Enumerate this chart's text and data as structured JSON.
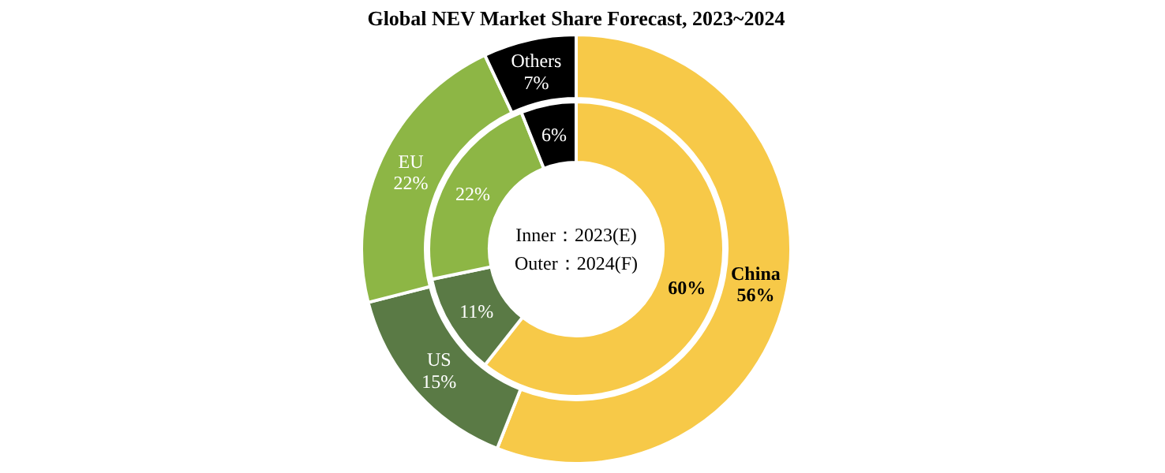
{
  "chart_data": {
    "type": "donut",
    "title": "Global NEV Market Share Forecast, 2023~2024",
    "categories": [
      "China",
      "US",
      "EU",
      "Others"
    ],
    "colors": [
      "#f7c948",
      "#5a7a45",
      "#8db645",
      "#000000"
    ],
    "series": [
      {
        "values": [
          60,
          11,
          22,
          6
        ],
        "value_labels": [
          "60%",
          "11%",
          "22%",
          "6%"
        ]
      },
      {
        "values": [
          56,
          15,
          22,
          7
        ],
        "value_labels": [
          "56%",
          "15%",
          "22%",
          "7%"
        ]
      }
    ],
    "annotations": [
      "Inner：2023(E)",
      "Outer：2024(F)"
    ]
  }
}
